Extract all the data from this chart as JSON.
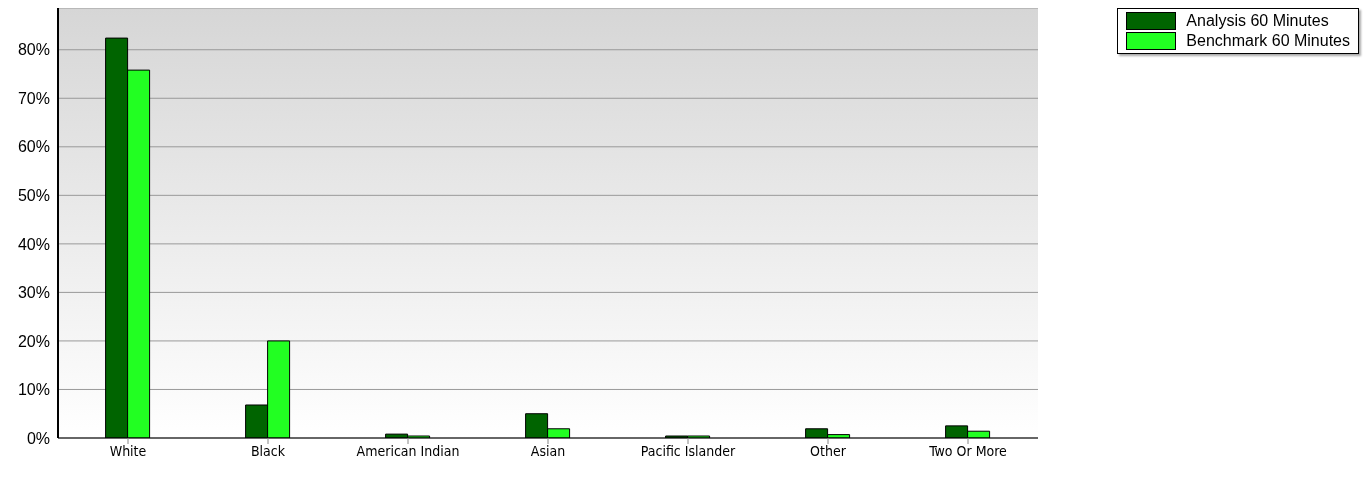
{
  "chart_data": {
    "type": "bar",
    "categories": [
      "White",
      "Black",
      "American Indian",
      "Asian",
      "Pacific Islander",
      "Other",
      "Two Or More"
    ],
    "series": [
      {
        "name": "Analysis 60 Minutes",
        "color": "#006400",
        "values": [
          82.4,
          6.8,
          0.8,
          5.0,
          0.1,
          1.9,
          2.5
        ]
      },
      {
        "name": "Benchmark 60 Minutes",
        "color": "#22ff22",
        "values": [
          75.8,
          20.0,
          0.3,
          1.9,
          0.2,
          0.7,
          1.4
        ]
      }
    ],
    "ylim": [
      0,
      88.6
    ],
    "yticks": [
      {
        "value": 0,
        "label": "0%"
      },
      {
        "value": 10,
        "label": "10%"
      },
      {
        "value": 20,
        "label": "20%"
      },
      {
        "value": 30,
        "label": "30%"
      },
      {
        "value": 40,
        "label": "40%"
      },
      {
        "value": 50,
        "label": "50%"
      },
      {
        "value": 60,
        "label": "60%"
      },
      {
        "value": 70,
        "label": "70%"
      },
      {
        "value": 80,
        "label": "80%"
      }
    ],
    "grid": "y",
    "legend": "top right"
  }
}
